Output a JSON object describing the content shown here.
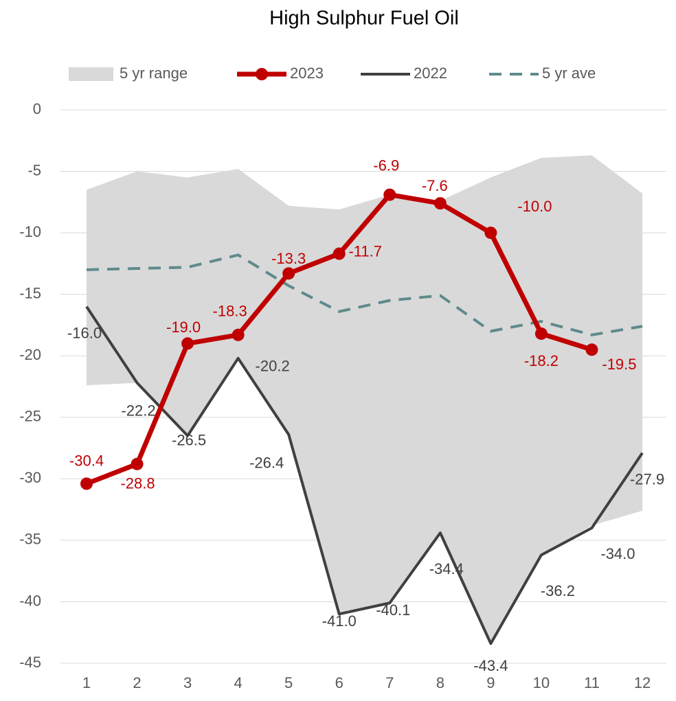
{
  "chart_data": {
    "type": "line",
    "title": "High Sulphur Fuel Oil",
    "categories": [
      1,
      2,
      3,
      4,
      5,
      6,
      7,
      8,
      9,
      10,
      11,
      12
    ],
    "ylim": [
      -45,
      0
    ],
    "yticks": [
      0,
      -5,
      -10,
      -15,
      -20,
      -25,
      -30,
      -35,
      -40,
      -45
    ],
    "grid": true,
    "legend": "top",
    "range": {
      "name": "5 yr range",
      "color": "#d9d9d9",
      "high": [
        -6.5,
        -5.0,
        -5.5,
        -4.8,
        -7.8,
        -8.1,
        -6.9,
        -7.4,
        -5.5,
        -3.9,
        -3.7,
        -6.8
      ],
      "low": [
        -22.4,
        -22.2,
        -26.5,
        -20.2,
        -26.4,
        -41.0,
        -40.1,
        -34.4,
        -43.4,
        -36.2,
        -33.8,
        -32.6
      ]
    },
    "series": [
      {
        "name": "2023",
        "color": "#c00000",
        "style": "marker",
        "values": [
          -30.4,
          -28.8,
          -19.0,
          -18.3,
          -13.3,
          -11.7,
          -6.9,
          -7.6,
          -10.0,
          -18.2,
          -19.5,
          null
        ],
        "value_labels": [
          "-30.4",
          "-28.8",
          "-19.0",
          "-18.3",
          "-13.3",
          "-11.7",
          "-6.9",
          "-7.6",
          "-10.0",
          "-18.2",
          "-19.5",
          null
        ]
      },
      {
        "name": "2022",
        "color": "#404040",
        "style": "solid",
        "values": [
          -16.0,
          -22.2,
          -26.5,
          -20.2,
          -26.4,
          -41.0,
          -40.1,
          -34.4,
          -43.4,
          -36.2,
          -34.0,
          -27.9
        ],
        "value_labels": [
          "-16.0",
          "-22.2",
          "-26.5",
          "-20.2",
          "-26.4",
          "-41.0",
          "-40.1",
          "-34.4",
          "-43.4",
          "-36.2",
          "-34.0",
          "-27.9"
        ]
      },
      {
        "name": "5 yr ave",
        "color": "#5f8a8b",
        "style": "dashed",
        "values": [
          -13.0,
          -12.9,
          -12.8,
          -11.8,
          -14.3,
          -16.4,
          -15.5,
          -15.1,
          -18.0,
          -17.2,
          -18.3,
          -17.6
        ]
      }
    ]
  }
}
